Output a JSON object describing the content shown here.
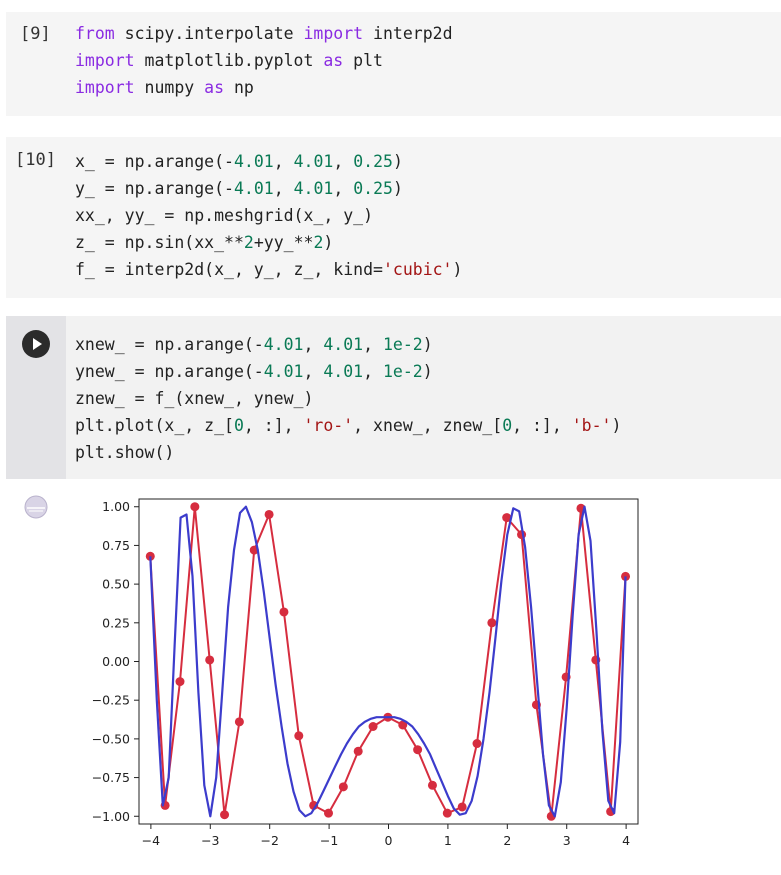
{
  "cells": [
    {
      "prompt": "[9]",
      "lines": [
        [
          {
            "t": "from",
            "c": "kw"
          },
          {
            "t": " scipy.interpolate "
          },
          {
            "t": "import",
            "c": "kw"
          },
          {
            "t": " interp2d"
          }
        ],
        [
          {
            "t": "import",
            "c": "kw"
          },
          {
            "t": " matplotlib.pyplot "
          },
          {
            "t": "as",
            "c": "kw"
          },
          {
            "t": " plt"
          }
        ],
        [
          {
            "t": "import",
            "c": "kw"
          },
          {
            "t": " numpy "
          },
          {
            "t": "as",
            "c": "kw"
          },
          {
            "t": " np"
          }
        ]
      ]
    },
    {
      "prompt": "[10]",
      "lines": [
        [
          {
            "t": "x_ = np.arange(-"
          },
          {
            "t": "4.01",
            "c": "num"
          },
          {
            "t": ", "
          },
          {
            "t": "4.01",
            "c": "num"
          },
          {
            "t": ", "
          },
          {
            "t": "0.25",
            "c": "num"
          },
          {
            "t": ")"
          }
        ],
        [
          {
            "t": "y_ = np.arange(-"
          },
          {
            "t": "4.01",
            "c": "num"
          },
          {
            "t": ", "
          },
          {
            "t": "4.01",
            "c": "num"
          },
          {
            "t": ", "
          },
          {
            "t": "0.25",
            "c": "num"
          },
          {
            "t": ")"
          }
        ],
        [
          {
            "t": "xx_, yy_ = np.meshgrid(x_, y_)"
          }
        ],
        [
          {
            "t": "z_ = np.sin(xx_**"
          },
          {
            "t": "2",
            "c": "num"
          },
          {
            "t": "+yy_**"
          },
          {
            "t": "2",
            "c": "num"
          },
          {
            "t": ")"
          }
        ],
        [
          {
            "t": "f_ = interp2d(x_, y_, z_, kind="
          },
          {
            "t": "'cubic'",
            "c": "str"
          },
          {
            "t": ")"
          }
        ]
      ]
    },
    {
      "prompt": "",
      "lines": [
        [
          {
            "t": "xnew_ = np.arange(-"
          },
          {
            "t": "4.01",
            "c": "num"
          },
          {
            "t": ", "
          },
          {
            "t": "4.01",
            "c": "num"
          },
          {
            "t": ", "
          },
          {
            "t": "1e-2",
            "c": "num"
          },
          {
            "t": ")"
          }
        ],
        [
          {
            "t": "ynew_ = np.arange(-"
          },
          {
            "t": "4.01",
            "c": "num"
          },
          {
            "t": ", "
          },
          {
            "t": "4.01",
            "c": "num"
          },
          {
            "t": ", "
          },
          {
            "t": "1e-2",
            "c": "num"
          },
          {
            "t": ")"
          }
        ],
        [
          {
            "t": "znew_ = f_(xnew_, ynew_)"
          }
        ],
        [
          {
            "t": "plt.plot(x_, z_["
          },
          {
            "t": "0",
            "c": "num"
          },
          {
            "t": ", :], "
          },
          {
            "t": "'ro-'",
            "c": "str"
          },
          {
            "t": ", xnew_, znew_["
          },
          {
            "t": "0",
            "c": "num"
          },
          {
            "t": ", :], "
          },
          {
            "t": "'b-'",
            "c": "str"
          },
          {
            "t": ")"
          }
        ],
        [
          {
            "t": "plt.show()"
          }
        ]
      ]
    }
  ],
  "icons": {
    "run": "play-icon",
    "output": "output-settings-icon"
  },
  "colors": {
    "keyword": "#8a2be2",
    "number": "#0a7a55",
    "string": "#a31515",
    "marker": "#d62d3f",
    "interp_line": "#3c3ccc"
  },
  "chart_data": {
    "type": "line",
    "xlim": [
      -4.2,
      4.2
    ],
    "ylim": [
      -1.05,
      1.05
    ],
    "xticks": [
      -4,
      -3,
      -2,
      -1,
      0,
      1,
      2,
      3,
      4
    ],
    "xtick_labels": [
      "−4",
      "−3",
      "−2",
      "−1",
      "0",
      "1",
      "2",
      "3",
      "4"
    ],
    "yticks": [
      1.0,
      0.75,
      0.5,
      0.25,
      0.0,
      -0.25,
      -0.5,
      -0.75,
      -1.0
    ],
    "ytick_labels": [
      "1.00",
      "0.75",
      "0.50",
      "0.25",
      "0.00",
      "−0.25",
      "−0.50",
      "−0.75",
      "−1.00"
    ],
    "grid": false,
    "series": [
      {
        "style": "ro-",
        "x": [
          -4.01,
          -3.76,
          -3.51,
          -3.26,
          -3.01,
          -2.76,
          -2.51,
          -2.26,
          -2.01,
          -1.76,
          -1.51,
          -1.26,
          -1.01,
          -0.76,
          -0.51,
          -0.26,
          -0.01,
          0.24,
          0.49,
          0.74,
          0.99,
          1.24,
          1.49,
          1.74,
          1.99,
          2.24,
          2.49,
          2.74,
          2.99,
          3.24,
          3.49,
          3.74,
          3.99
        ],
        "y": [
          0.68,
          -0.93,
          -0.13,
          1.0,
          0.01,
          -0.99,
          -0.39,
          0.72,
          0.95,
          0.32,
          -0.48,
          -0.93,
          -0.98,
          -0.81,
          -0.58,
          -0.42,
          -0.36,
          -0.41,
          -0.57,
          -0.8,
          -0.98,
          -0.94,
          -0.53,
          0.25,
          0.93,
          0.82,
          -0.28,
          -1.0,
          -0.1,
          0.99,
          0.01,
          -0.97,
          0.55
        ]
      },
      {
        "style": "b-",
        "x": [
          -4.01,
          -3.9,
          -3.8,
          -3.7,
          -3.6,
          -3.5,
          -3.4,
          -3.3,
          -3.2,
          -3.1,
          -3.0,
          -2.9,
          -2.8,
          -2.7,
          -2.6,
          -2.5,
          -2.4,
          -2.3,
          -2.2,
          -2.1,
          -2.0,
          -1.9,
          -1.8,
          -1.7,
          -1.6,
          -1.5,
          -1.4,
          -1.3,
          -1.2,
          -1.1,
          -1.0,
          -0.9,
          -0.8,
          -0.7,
          -0.6,
          -0.5,
          -0.4,
          -0.3,
          -0.2,
          -0.1,
          0.0,
          0.1,
          0.2,
          0.3,
          0.4,
          0.5,
          0.6,
          0.7,
          0.8,
          0.9,
          1.0,
          1.1,
          1.2,
          1.3,
          1.4,
          1.5,
          1.6,
          1.7,
          1.8,
          1.9,
          2.0,
          2.1,
          2.2,
          2.3,
          2.4,
          2.5,
          2.6,
          2.7,
          2.8,
          2.9,
          3.0,
          3.1,
          3.2,
          3.3,
          3.4,
          3.5,
          3.6,
          3.7,
          3.8,
          3.9,
          3.99
        ],
        "y": [
          0.68,
          -0.25,
          -0.93,
          -0.75,
          0.1,
          0.93,
          0.95,
          0.55,
          -0.2,
          -0.8,
          -1.0,
          -0.75,
          -0.2,
          0.35,
          0.72,
          0.96,
          1.0,
          0.9,
          0.72,
          0.45,
          0.15,
          -0.15,
          -0.42,
          -0.66,
          -0.84,
          -0.96,
          -1.0,
          -0.98,
          -0.92,
          -0.84,
          -0.76,
          -0.68,
          -0.6,
          -0.53,
          -0.47,
          -0.42,
          -0.39,
          -0.37,
          -0.36,
          -0.36,
          -0.36,
          -0.36,
          -0.37,
          -0.39,
          -0.42,
          -0.47,
          -0.53,
          -0.6,
          -0.69,
          -0.78,
          -0.87,
          -0.95,
          -0.99,
          -0.98,
          -0.9,
          -0.74,
          -0.5,
          -0.2,
          0.15,
          0.52,
          0.82,
          0.99,
          0.97,
          0.74,
          0.35,
          -0.12,
          -0.6,
          -0.93,
          -1.0,
          -0.78,
          -0.3,
          0.3,
          0.82,
          1.0,
          0.78,
          0.2,
          -0.45,
          -0.9,
          -0.98,
          -0.52,
          0.55
        ]
      }
    ]
  }
}
